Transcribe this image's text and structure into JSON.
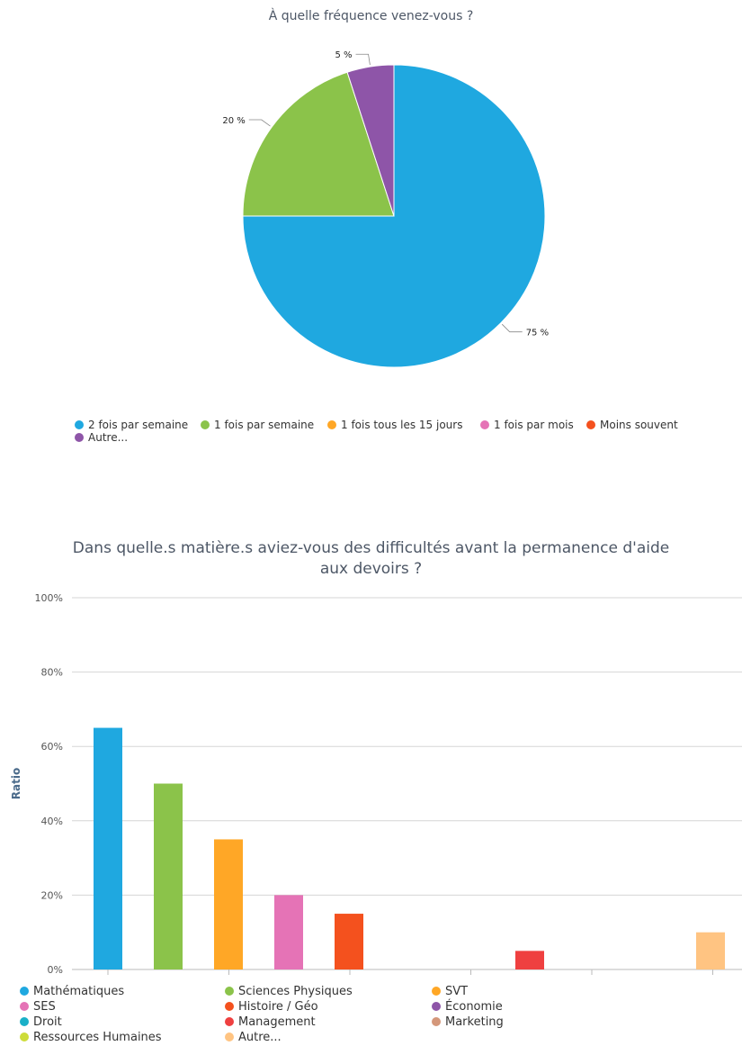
{
  "charts": {
    "pie": {
      "title": "À quelle fréquence venez-vous ?",
      "chart_data": {
        "type": "pie",
        "slices": [
          {
            "label": "2 fois par semaine",
            "value": 75,
            "display": "75 %",
            "color": "#1fa8e0"
          },
          {
            "label": "1 fois par semaine",
            "value": 20,
            "display": "20 %",
            "color": "#8bc34a"
          },
          {
            "label": "1 fois tous les 15 jours",
            "value": 0,
            "display": "",
            "color": "#ffa726"
          },
          {
            "label": "1 fois par mois",
            "value": 0,
            "display": "",
            "color": "#e573b6"
          },
          {
            "label": "Moins souvent",
            "value": 0,
            "display": "",
            "color": "#f4511e"
          },
          {
            "label": "Autre...",
            "value": 5,
            "display": "5 %",
            "color": "#8e55a8"
          }
        ],
        "legend_position": "bottom"
      }
    },
    "bar": {
      "title_lines": [
        "Dans quelle.s matière.s aviez-vous des difficultés avant la permanence d'aide",
        "aux devoirs ?"
      ],
      "chart_data": {
        "type": "bar",
        "ylabel": "Ratio",
        "ylim": [
          0,
          100
        ],
        "yticks": [
          "0%",
          "20%",
          "40%",
          "60%",
          "80%",
          "100%"
        ],
        "grid": true,
        "legend_position": "bottom",
        "categories": [
          "Mathématiques",
          "Sciences Physiques",
          "SVT",
          "SES",
          "Histoire / Géo",
          "Économie",
          "Droit",
          "Management",
          "Marketing",
          "Ressources Humaines",
          "Autre..."
        ],
        "values": [
          65,
          50,
          35,
          20,
          15,
          0,
          0,
          5,
          0,
          0,
          10
        ],
        "colors": [
          "#1fa8e0",
          "#8bc34a",
          "#ffa726",
          "#e573b6",
          "#f4511e",
          "#8e55a8",
          "#1ab0c8",
          "#ef4040",
          "#d4977a",
          "#cddc39",
          "#ffc482"
        ]
      }
    }
  }
}
